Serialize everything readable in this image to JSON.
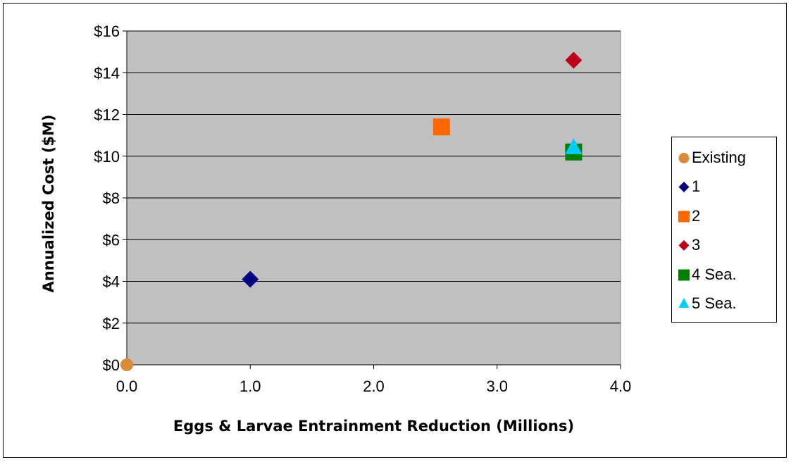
{
  "chart_data": {
    "type": "scatter",
    "title": "",
    "xlabel": "Eggs & Larvae Entrainment Reduction (Millions)",
    "ylabel": "Annualized Cost ($M)",
    "xlim": [
      0,
      4
    ],
    "ylim": [
      0,
      16
    ],
    "x_ticks": [
      0,
      1,
      2,
      3,
      4
    ],
    "x_tick_labels": [
      "0.0",
      "1.0",
      "2.0",
      "3.0",
      "4.0"
    ],
    "y_ticks": [
      0,
      2,
      4,
      6,
      8,
      10,
      12,
      14,
      16
    ],
    "y_tick_labels": [
      "$0",
      "$2",
      "$4",
      "$6",
      "$8",
      "$10",
      "$12",
      "$14",
      "$16"
    ],
    "grid": "horizontal",
    "plot_background": "#c0c0c0",
    "legend_position": "right",
    "series": [
      {
        "name": "Existing",
        "marker": "circle",
        "color": "#d98b3a",
        "points": [
          [
            0.0,
            0.0
          ]
        ]
      },
      {
        "name": "1",
        "marker": "diamond",
        "color": "#000080",
        "points": [
          [
            1.0,
            4.1
          ]
        ]
      },
      {
        "name": "2",
        "marker": "square",
        "color": "#ff6600",
        "points": [
          [
            2.55,
            11.4
          ]
        ]
      },
      {
        "name": "3",
        "marker": "diamond",
        "color": "#c0001a",
        "points": [
          [
            3.62,
            14.6
          ]
        ]
      },
      {
        "name": "4 Sea.",
        "marker": "square",
        "color": "#008000",
        "points": [
          [
            3.62,
            10.2
          ]
        ]
      },
      {
        "name": "5 Sea.",
        "marker": "triangle",
        "color": "#00ccff",
        "points": [
          [
            3.62,
            10.4
          ]
        ]
      }
    ]
  }
}
